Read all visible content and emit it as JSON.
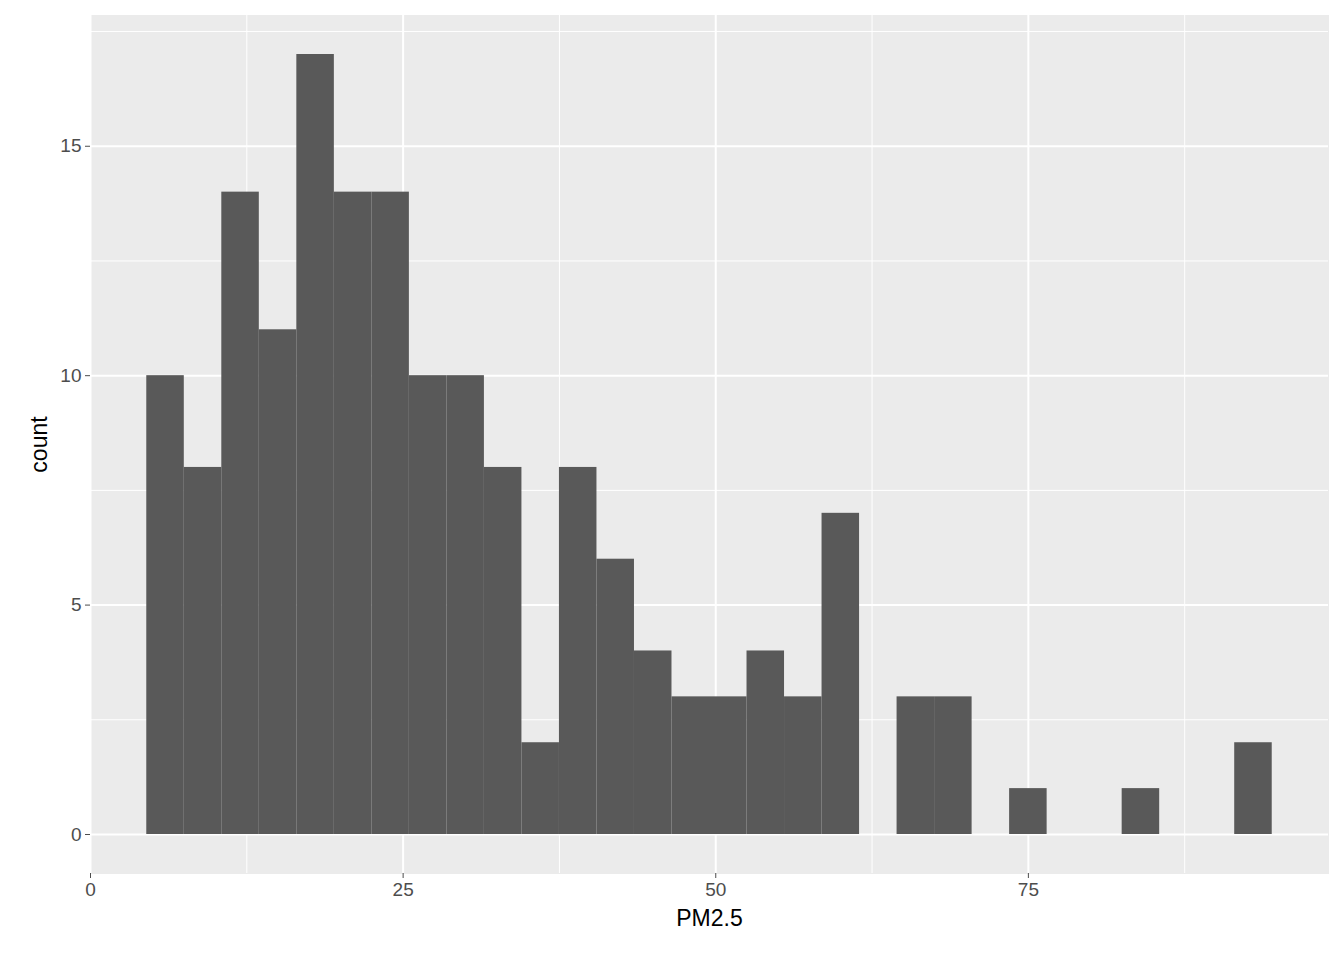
{
  "chart_data": {
    "type": "histogram",
    "x_label": "PM2.5",
    "y_label": "count",
    "bins": [
      4.5,
      7.5,
      10.5,
      13.5,
      16.5,
      19.5,
      22.5,
      25.5,
      28.5,
      31.5,
      34.5,
      37.5,
      40.5,
      43.5,
      46.5,
      49.5,
      52.5,
      55.5,
      58.5,
      61.5,
      64.5,
      67.5,
      70.5,
      73.5,
      76.5,
      79.5,
      82.5,
      85.5,
      88.5,
      91.5,
      94.5
    ],
    "values": [
      10,
      8,
      14,
      11,
      17,
      14,
      14,
      10,
      10,
      8,
      2,
      8,
      6,
      4,
      3,
      3,
      4,
      3,
      7,
      0,
      3,
      3,
      0,
      1,
      0,
      0,
      1,
      0,
      0,
      2
    ],
    "color": "#595959",
    "xlim": [
      0,
      99
    ],
    "xticks": [
      0,
      25,
      50,
      75
    ],
    "ylim": [
      -0.85,
      17.85
    ],
    "yticks": [
      0,
      5,
      10,
      15
    ],
    "grid": true
  }
}
